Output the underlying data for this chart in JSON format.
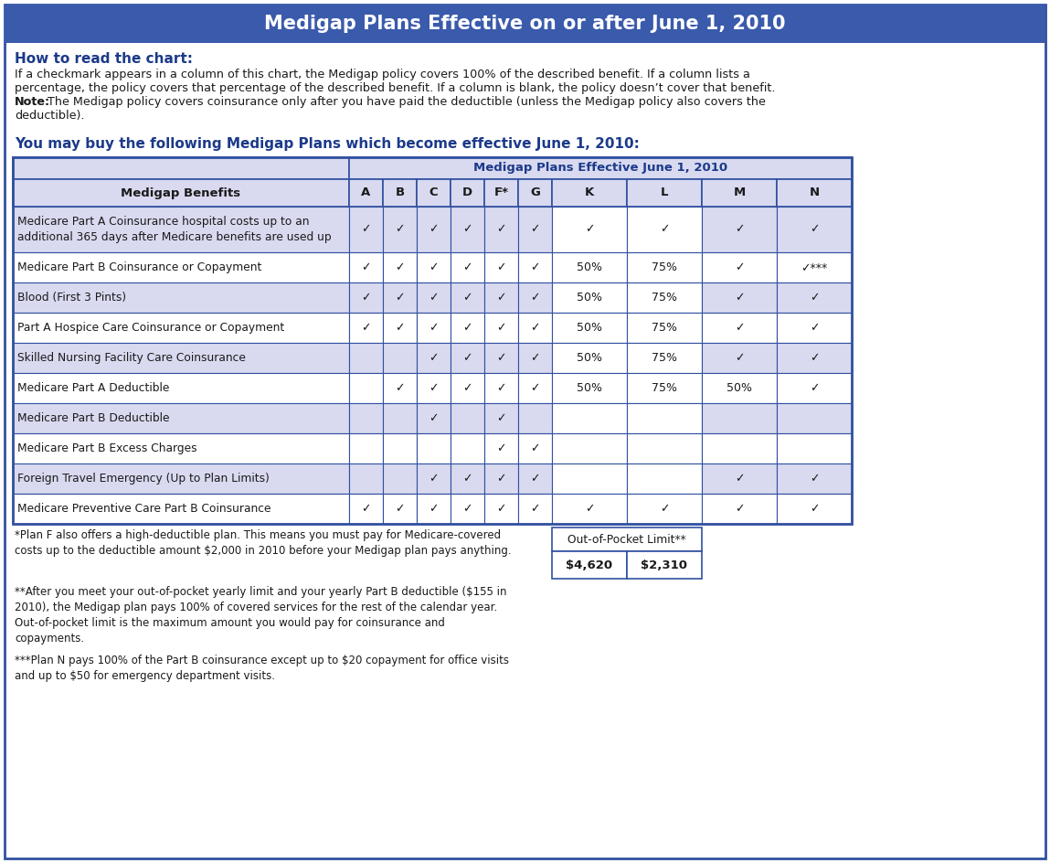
{
  "title": "Medigap Plans Effective on or after June 1, 2010",
  "title_bg": "#3a5aab",
  "title_color": "#ffffff",
  "how_to_read_heading": "How to read the chart:",
  "how_to_read_text_line1": "If a checkmark appears in a column of this chart, the Medigap policy covers 100% of the described benefit. If a column lists a",
  "how_to_read_text_line2": "percentage, the policy covers that percentage of the described benefit. If a column is blank, the policy doesn’t cover that benefit.",
  "how_to_read_text_line3_bold": "Note:",
  "how_to_read_text_line3_rest": " The Medigap policy covers coinsurance only after you have paid the deductible (unless the Medigap policy also covers the",
  "how_to_read_text_line4": "deductible).",
  "subheading": "You may buy the following Medigap Plans which become effective June 1, 2010:",
  "table_header_row1": "Medigap Plans Effective June 1, 2010",
  "col_header": [
    "Medigap Benefits",
    "A",
    "B",
    "C",
    "D",
    "F*",
    "G",
    "K",
    "L",
    "M",
    "N"
  ],
  "benefits": [
    "Medicare Part A Coinsurance hospital costs up to an\nadditional 365 days after Medicare benefits are used up",
    "Medicare Part B Coinsurance or Copayment",
    "Blood (First 3 Pints)",
    "Part A Hospice Care Coinsurance or Copayment",
    "Skilled Nursing Facility Care Coinsurance",
    "Medicare Part A Deductible",
    "Medicare Part B Deductible",
    "Medicare Part B Excess Charges",
    "Foreign Travel Emergency (Up to Plan Limits)",
    "Medicare Preventive Care Part B Coinsurance"
  ],
  "grid_data": [
    [
      "✓",
      "✓",
      "✓",
      "✓",
      "✓",
      "✓",
      "✓",
      "✓",
      "✓",
      "✓"
    ],
    [
      "✓",
      "✓",
      "✓",
      "✓",
      "✓",
      "✓",
      "50%",
      "75%",
      "✓",
      "✓***"
    ],
    [
      "✓",
      "✓",
      "✓",
      "✓",
      "✓",
      "✓",
      "50%",
      "75%",
      "✓",
      "✓"
    ],
    [
      "✓",
      "✓",
      "✓",
      "✓",
      "✓",
      "✓",
      "50%",
      "75%",
      "✓",
      "✓"
    ],
    [
      "",
      "",
      "✓",
      "✓",
      "✓",
      "✓",
      "50%",
      "75%",
      "✓",
      "✓"
    ],
    [
      "",
      "✓",
      "✓",
      "✓",
      "✓",
      "✓",
      "50%",
      "75%",
      "50%",
      "✓"
    ],
    [
      "",
      "",
      "✓",
      "",
      "✓",
      "",
      "",
      "",
      "",
      ""
    ],
    [
      "",
      "",
      "",
      "",
      "✓",
      "✓",
      "",
      "",
      "",
      ""
    ],
    [
      "",
      "",
      "✓",
      "✓",
      "✓",
      "✓",
      "",
      "",
      "✓",
      "✓"
    ],
    [
      "✓",
      "✓",
      "✓",
      "✓",
      "✓",
      "✓",
      "✓",
      "✓",
      "✓",
      "✓"
    ]
  ],
  "footnote1_star": "*",
  "footnote1_text": "Plan F also offers a high-deductible plan. This means you must pay for Medicare-covered\ncosts up to the deductible amount $2,000 in 2010 before your Medigap plan pays anything.",
  "footnote2_star": "**",
  "footnote2_text": "After you meet your out-of-pocket yearly limit and your yearly Part B deductible ($155 in\n2010), the Medigap plan pays 100% of covered services for the rest of the calendar year.\nOut-of-pocket limit is the maximum amount you would pay for coinsurance and\ncopayments.",
  "footnote3_star": "***",
  "footnote3_text": "Plan N pays 100% of the Part B coinsurance except up to $20 copayment for office visits\nand up to $50 for emergency department visits.",
  "out_of_pocket_label": "Out-of-Pocket Limit**",
  "out_of_pocket_K": "$4,620",
  "out_of_pocket_L": "$2,310",
  "row_bg_even": "#d9daf0",
  "row_bg_odd": "#ffffff",
  "header_bg": "#d9daf0",
  "border_color": "#3050a0",
  "outer_border": "#3050a0",
  "title_bg_color": "#3a5aab"
}
